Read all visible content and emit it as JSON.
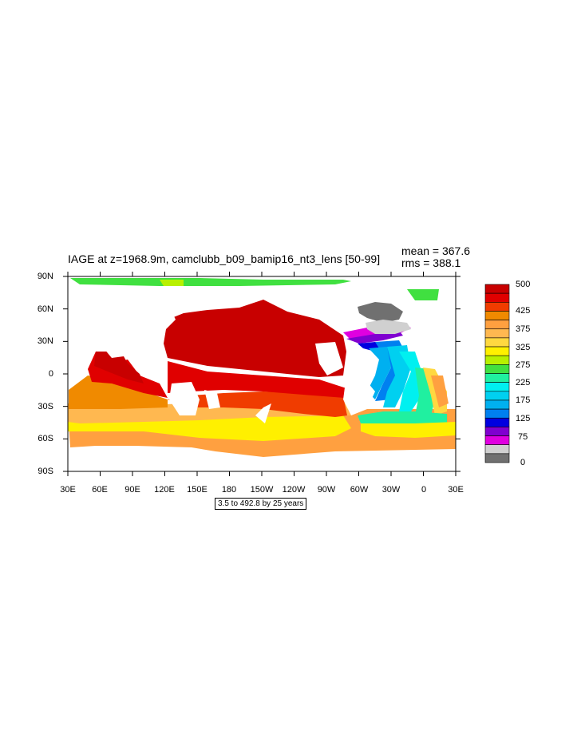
{
  "title": "IAGE at z=1968.9m, camclubb_b09_bamip16_nt3_lens [50-99]",
  "stats": {
    "mean": "mean = 367.6",
    "rms": "rms = 388.1"
  },
  "lat_labels": [
    "90N",
    "60N",
    "30N",
    "0",
    "30S",
    "60S",
    "90S"
  ],
  "lon_labels": [
    "30E",
    "60E",
    "90E",
    "120E",
    "150E",
    "180",
    "150W",
    "120W",
    "90W",
    "60W",
    "30W",
    "0",
    "30E"
  ],
  "contour_info": "3.5 to 492.8 by 25 years",
  "colorbar": {
    "labels": [
      "500",
      "425",
      "375",
      "325",
      "275",
      "225",
      "175",
      "125",
      "75",
      "0"
    ],
    "colors": [
      "#c80000",
      "#e00000",
      "#f03c00",
      "#f08a00",
      "#ffa040",
      "#ffb850",
      "#ffd840",
      "#fff000",
      "#b8f000",
      "#40e040",
      "#20f0a0",
      "#00f0f0",
      "#00d0f0",
      "#00b0f0",
      "#0080f0",
      "#0000e0",
      "#8000d0",
      "#e000e0",
      "#d0d0d0",
      "#707070"
    ]
  }
}
